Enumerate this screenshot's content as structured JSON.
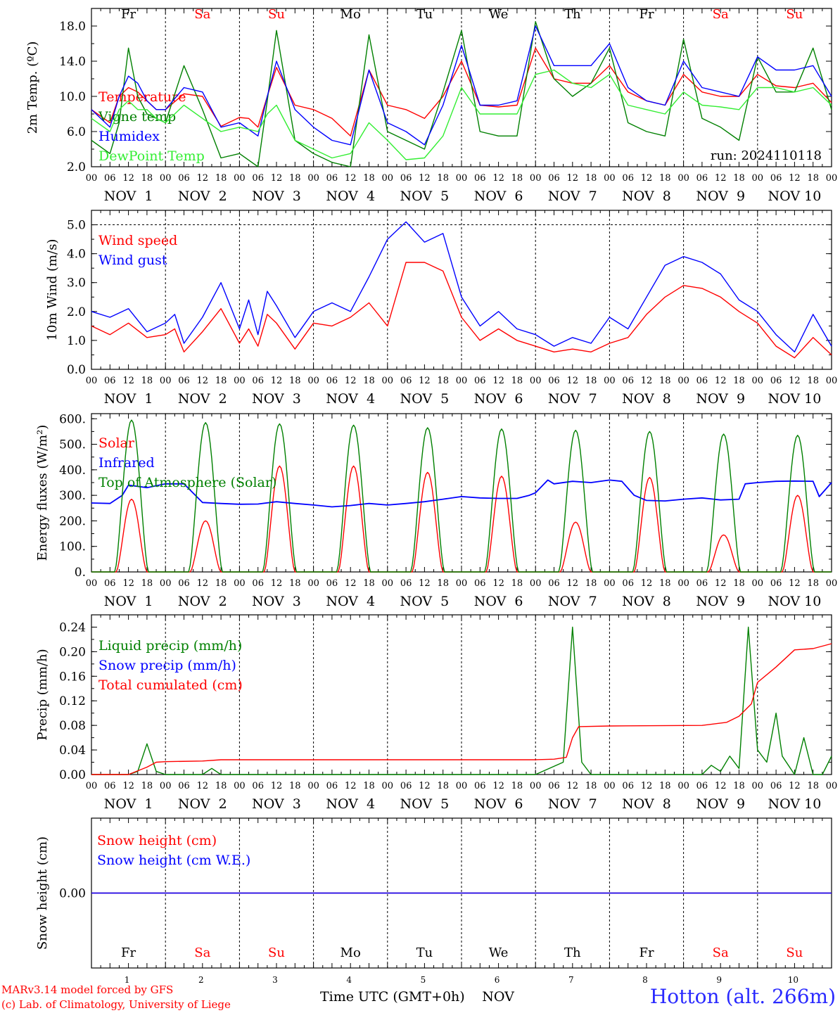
{
  "day_markers": [
    {
      "name": "Fr",
      "color": "#000000"
    },
    {
      "name": "Sa",
      "color": "#ff0000"
    },
    {
      "name": "Su",
      "color": "#ff0000"
    },
    {
      "name": "Mo",
      "color": "#000000"
    },
    {
      "name": "Tu",
      "color": "#000000"
    },
    {
      "name": "We",
      "color": "#000000"
    },
    {
      "name": "Th",
      "color": "#000000"
    },
    {
      "name": "Fr",
      "color": "#000000"
    },
    {
      "name": "Sa",
      "color": "#ff0000"
    },
    {
      "name": "Su",
      "color": "#ff0000"
    }
  ],
  "hour_ticks": [
    "00",
    "06",
    "12",
    "18"
  ],
  "date_labels": [
    "NOV  1",
    "NOV  2",
    "NOV  3",
    "NOV  4",
    "NOV  5",
    "NOV  6",
    "NOV  7",
    "NOV  8",
    "NOV  9",
    "NOV 10"
  ],
  "bottom_day_numbers": [
    "1",
    "2",
    "3",
    "4",
    "5",
    "6",
    "7",
    "8",
    "9",
    "10"
  ],
  "bottom_month": "NOV",
  "footer": {
    "credit_line1": "MARv3.14 model forced by GFS",
    "credit_line2": "(c) Lab. of Climatology, University of Liege",
    "xlabel": "Time UTC (GMT+0h)",
    "station": "Hotton (alt. 266m)"
  },
  "chart_data": [
    {
      "type": "line",
      "ylabel": "2m Temp. (ºC)",
      "ylim": [
        2,
        20
      ],
      "yticks": [
        "2.0",
        "6.0",
        "10.0",
        "14.0",
        "18.0"
      ],
      "ytick_values": [
        2,
        6,
        10,
        14,
        18
      ],
      "annotation": "run: 2024110118",
      "x_unit": "hours since NOV 1 00 UTC",
      "grid": "dashed vertical at midnight",
      "series": [
        {
          "name": "Temperature",
          "color": "#ff0000",
          "x": [
            0,
            6,
            9,
            12,
            15,
            18,
            21,
            24,
            30,
            36,
            42,
            48,
            51,
            54,
            57,
            60,
            66,
            72,
            78,
            84,
            90,
            96,
            102,
            108,
            114,
            120,
            126,
            132,
            138,
            144,
            150,
            156,
            162,
            168,
            174,
            180,
            186,
            192,
            198,
            204,
            210,
            216,
            222,
            228,
            234,
            240
          ],
          "values": [
            8.5,
            7.0,
            10.0,
            11.0,
            10.5,
            9.5,
            8.5,
            8.5,
            10.3,
            10.0,
            6.6,
            7.6,
            7.5,
            6.5,
            10.0,
            13.3,
            9.0,
            8.5,
            7.5,
            5.5,
            13.0,
            9.0,
            8.5,
            7.5,
            10.0,
            14.0,
            9.0,
            8.8,
            9.0,
            15.5,
            12.0,
            11.5,
            11.5,
            13.5,
            10.5,
            9.5,
            9.0,
            12.5,
            10.5,
            10.0,
            10.0,
            12.5,
            11.2,
            11.0,
            11.5,
            9.3
          ]
        },
        {
          "name": "Vigne temp",
          "color": "#008000",
          "x": [
            0,
            6,
            9,
            12,
            15,
            18,
            21,
            24,
            30,
            36,
            42,
            48,
            54,
            57,
            60,
            66,
            72,
            78,
            84,
            90,
            96,
            102,
            108,
            114,
            120,
            126,
            132,
            138,
            144,
            150,
            156,
            162,
            168,
            174,
            180,
            186,
            192,
            198,
            204,
            210,
            216,
            222,
            228,
            234,
            240
          ],
          "values": [
            5.0,
            3.5,
            7.0,
            15.5,
            10.0,
            8.0,
            7.5,
            7.0,
            13.5,
            8.5,
            3.0,
            3.5,
            2.0,
            9.5,
            17.5,
            5.0,
            3.5,
            2.5,
            2.0,
            17.0,
            6.0,
            5.0,
            4.0,
            10.5,
            17.5,
            6.0,
            5.5,
            5.5,
            18.5,
            12.0,
            10.0,
            11.5,
            15.5,
            7.0,
            6.0,
            5.5,
            16.5,
            7.5,
            6.5,
            5.0,
            14.5,
            10.5,
            10.5,
            15.5,
            8.5
          ]
        },
        {
          "name": "Humidex",
          "color": "#0000ff",
          "x": [
            0,
            6,
            9,
            12,
            15,
            18,
            21,
            24,
            30,
            36,
            42,
            48,
            54,
            57,
            60,
            66,
            72,
            78,
            84,
            90,
            96,
            102,
            108,
            114,
            120,
            126,
            132,
            138,
            144,
            150,
            156,
            162,
            168,
            174,
            180,
            186,
            192,
            198,
            204,
            210,
            216,
            222,
            228,
            234,
            240
          ],
          "values": [
            8.5,
            6.5,
            10.0,
            12.3,
            11.5,
            9.5,
            8.5,
            8.5,
            11.0,
            10.5,
            6.5,
            7.0,
            5.5,
            10.0,
            14.0,
            8.5,
            6.5,
            5.0,
            4.5,
            13.0,
            7.0,
            6.0,
            4.5,
            9.0,
            15.8,
            9.0,
            9.0,
            9.5,
            18.0,
            13.5,
            13.5,
            13.5,
            16.0,
            11.0,
            9.5,
            9.0,
            14.0,
            11.0,
            10.5,
            10.0,
            14.5,
            13.0,
            13.0,
            13.5,
            10.0
          ]
        },
        {
          "name": "DewPoint Temp",
          "color": "#33ee33",
          "x": [
            0,
            6,
            9,
            12,
            15,
            18,
            21,
            24,
            30,
            36,
            42,
            48,
            54,
            57,
            60,
            66,
            72,
            78,
            84,
            90,
            96,
            102,
            108,
            114,
            120,
            126,
            132,
            138,
            144,
            150,
            156,
            162,
            168,
            174,
            180,
            186,
            192,
            198,
            204,
            210,
            216,
            222,
            228,
            234,
            240
          ],
          "values": [
            7.5,
            6.0,
            8.5,
            9.5,
            8.5,
            8.5,
            7.5,
            7.0,
            9.0,
            7.5,
            6.0,
            6.5,
            6.0,
            8.0,
            9.0,
            5.0,
            4.0,
            3.0,
            3.5,
            7.0,
            5.0,
            2.8,
            3.0,
            5.5,
            11.0,
            8.0,
            8.0,
            8.0,
            12.5,
            13.0,
            11.5,
            11.0,
            12.5,
            9.0,
            8.5,
            8.0,
            10.5,
            9.0,
            8.8,
            8.5,
            11.0,
            11.0,
            10.5,
            11.0,
            9.0
          ]
        }
      ]
    },
    {
      "type": "line",
      "ylabel": "10m Wind (m/s)",
      "ylim": [
        0,
        5.5
      ],
      "yticks": [
        "0.0",
        "1.0",
        "2.0",
        "3.0",
        "4.0",
        "5.0"
      ],
      "ytick_values": [
        0,
        1,
        2,
        3,
        4,
        5
      ],
      "x_unit": "hours since NOV 1 00 UTC",
      "grid": "dashed vertical at midnight, dashed horizontal at 5.0",
      "series": [
        {
          "name": "Wind speed",
          "color": "#ff0000",
          "x": [
            0,
            6,
            12,
            18,
            24,
            27,
            30,
            36,
            42,
            48,
            51,
            54,
            57,
            60,
            66,
            72,
            78,
            84,
            90,
            96,
            102,
            108,
            114,
            120,
            126,
            132,
            138,
            144,
            150,
            156,
            162,
            168,
            174,
            180,
            186,
            192,
            198,
            204,
            210,
            216,
            222,
            228,
            234,
            240
          ],
          "values": [
            1.5,
            1.2,
            1.6,
            1.1,
            1.2,
            1.4,
            0.6,
            1.3,
            2.1,
            0.9,
            1.4,
            0.8,
            1.9,
            1.6,
            0.7,
            1.6,
            1.5,
            1.8,
            2.3,
            1.5,
            3.7,
            3.7,
            3.4,
            1.8,
            1.0,
            1.4,
            1.0,
            0.8,
            0.6,
            0.7,
            0.6,
            0.9,
            1.1,
            1.9,
            2.5,
            2.9,
            2.8,
            2.5,
            2.0,
            1.6,
            0.8,
            0.4,
            1.1,
            0.5
          ]
        },
        {
          "name": "Wind gust",
          "color": "#0000ff",
          "x": [
            0,
            6,
            12,
            18,
            24,
            27,
            30,
            36,
            42,
            48,
            51,
            54,
            57,
            60,
            66,
            72,
            78,
            84,
            90,
            96,
            102,
            108,
            114,
            120,
            126,
            132,
            138,
            144,
            150,
            156,
            162,
            168,
            174,
            180,
            186,
            192,
            198,
            204,
            210,
            216,
            222,
            228,
            234,
            240
          ],
          "values": [
            2.0,
            1.8,
            2.1,
            1.3,
            1.6,
            1.9,
            0.9,
            1.8,
            3.0,
            1.4,
            2.4,
            1.2,
            2.7,
            2.2,
            1.1,
            2.0,
            2.3,
            2.0,
            3.2,
            4.5,
            5.1,
            4.4,
            4.7,
            2.5,
            1.5,
            2.0,
            1.4,
            1.2,
            0.8,
            1.1,
            0.9,
            1.8,
            1.4,
            2.5,
            3.6,
            3.9,
            3.7,
            3.3,
            2.4,
            2.0,
            1.2,
            0.6,
            1.9,
            0.8
          ]
        }
      ]
    },
    {
      "type": "line",
      "ylabel": "Energy fluxes (W/m²)",
      "ylim": [
        0,
        620
      ],
      "yticks": [
        "0.",
        "100.",
        "200.",
        "300.",
        "400.",
        "500.",
        "600."
      ],
      "ytick_values": [
        0,
        100,
        200,
        300,
        400,
        500,
        600
      ],
      "x_unit": "hours since NOV 1 00 UTC",
      "grid": "dashed vertical at midnight",
      "daily_peaks": {
        "solar": [
          285,
          200,
          415,
          415,
          390,
          375,
          195,
          370,
          145,
          300
        ],
        "top_of_atmosphere": [
          595,
          585,
          580,
          575,
          565,
          560,
          555,
          550,
          540,
          535
        ]
      },
      "series": [
        {
          "name": "Solar",
          "color": "#ff0000"
        },
        {
          "name": "Infrared",
          "color": "#0000ff",
          "x": [
            0,
            6,
            10,
            12,
            18,
            24,
            30,
            36,
            42,
            48,
            54,
            60,
            66,
            72,
            78,
            84,
            90,
            96,
            102,
            108,
            114,
            120,
            126,
            132,
            138,
            142,
            144,
            148,
            150,
            156,
            162,
            168,
            172,
            176,
            180,
            186,
            192,
            198,
            204,
            210,
            212,
            216,
            222,
            228,
            234,
            236,
            240
          ],
          "values": [
            270,
            268,
            300,
            340,
            330,
            345,
            345,
            272,
            268,
            265,
            266,
            275,
            268,
            262,
            255,
            260,
            268,
            262,
            268,
            275,
            285,
            295,
            290,
            288,
            288,
            300,
            310,
            360,
            345,
            355,
            350,
            360,
            355,
            300,
            280,
            278,
            285,
            290,
            282,
            285,
            345,
            350,
            355,
            356,
            355,
            295,
            350
          ]
        },
        {
          "name": "Top of Atmosphere (Solar)",
          "color": "#008000"
        }
      ]
    },
    {
      "type": "line",
      "ylabel": "Precip (mm/h)",
      "ylim": [
        0,
        0.26
      ],
      "yticks": [
        "0.00",
        "0.04",
        "0.08",
        "0.12",
        "0.16",
        "0.20",
        "0.24"
      ],
      "ytick_values": [
        0,
        0.04,
        0.08,
        0.12,
        0.16,
        0.2,
        0.24
      ],
      "x_unit": "hours since NOV 1 00 UTC",
      "grid": "dashed vertical at midnight",
      "series": [
        {
          "name": "Liquid precip (mm/h)",
          "color": "#008000",
          "x": [
            0,
            12,
            15,
            18,
            21,
            24,
            36,
            39,
            42,
            48,
            144,
            153,
            156,
            159,
            162,
            168,
            198,
            201,
            204,
            207,
            210,
            213,
            216,
            219,
            222,
            224,
            228,
            231,
            234,
            237,
            240
          ],
          "values": [
            0,
            0,
            0.005,
            0.05,
            0.005,
            0,
            0,
            0.01,
            0,
            0,
            0,
            0.02,
            0.24,
            0.02,
            0,
            0,
            0,
            0.015,
            0.005,
            0.03,
            0.01,
            0.24,
            0.04,
            0.02,
            0.1,
            0.03,
            0,
            0.06,
            0,
            0,
            0.03
          ]
        },
        {
          "name": "Snow precip (mm/h)",
          "color": "#0000ff"
        },
        {
          "name": "Total cumulated (cm)",
          "color": "#ff0000",
          "x": [
            0,
            12,
            18,
            21,
            24,
            36,
            42,
            144,
            150,
            154,
            156,
            158,
            168,
            198,
            206,
            210,
            214,
            216,
            222,
            228,
            234,
            240
          ],
          "values": [
            0,
            0,
            0.012,
            0.02,
            0.021,
            0.022,
            0.024,
            0.024,
            0.025,
            0.028,
            0.06,
            0.078,
            0.079,
            0.08,
            0.085,
            0.095,
            0.115,
            0.15,
            0.175,
            0.203,
            0.205,
            0.213
          ]
        }
      ]
    },
    {
      "type": "line",
      "ylabel": "Snow height (cm)",
      "ylim": [
        -1,
        1
      ],
      "yticks": [
        "0.00"
      ],
      "ytick_values": [
        0
      ],
      "x_unit": "hours since NOV 1 00 UTC",
      "grid": "dashed vertical at midnight",
      "series": [
        {
          "name": "Snow height (cm)",
          "color": "#ff0000",
          "x": [
            0,
            240
          ],
          "values": [
            0,
            0
          ]
        },
        {
          "name": "Snow height (cm W.E.)",
          "color": "#0000ff",
          "x": [
            0,
            240
          ],
          "values": [
            0,
            0
          ]
        }
      ]
    }
  ]
}
